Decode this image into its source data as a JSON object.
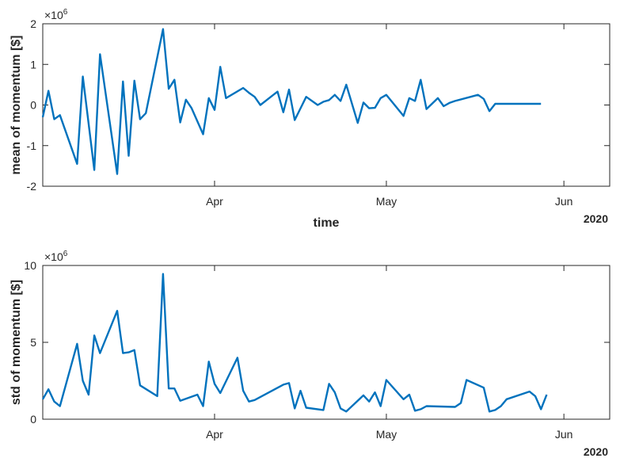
{
  "chart_data": [
    {
      "type": "line",
      "ylabel": "mean of momentum [$]",
      "xlabel": "time",
      "exponent_base": "×10",
      "exponent_power": "6",
      "year_label": "2020",
      "ylim": [
        -2,
        2
      ],
      "yticks": [
        -2,
        -1,
        0,
        1,
        2
      ],
      "ytick_labels": [
        "-2",
        "-1",
        "0",
        "1",
        "2"
      ],
      "xlim": [
        "2020-03-02",
        "2020-06-09"
      ],
      "xticks": [
        {
          "date": "2020-04-01",
          "label": "Apr"
        },
        {
          "date": "2020-05-01",
          "label": "May"
        },
        {
          "date": "2020-06-01",
          "label": "Jun"
        }
      ],
      "grid": false,
      "series": [
        {
          "color": "#0072BD",
          "x": [
            "2020-03-02",
            "2020-03-03",
            "2020-03-04",
            "2020-03-05",
            "2020-03-08",
            "2020-03-09",
            "2020-03-11",
            "2020-03-12",
            "2020-03-15",
            "2020-03-16",
            "2020-03-17",
            "2020-03-18",
            "2020-03-19",
            "2020-03-20",
            "2020-03-23",
            "2020-03-24",
            "2020-03-25",
            "2020-03-26",
            "2020-03-27",
            "2020-03-28",
            "2020-03-30",
            "2020-03-31",
            "2020-04-01",
            "2020-04-02",
            "2020-04-03",
            "2020-04-06",
            "2020-04-07",
            "2020-04-08",
            "2020-04-09",
            "2020-04-12",
            "2020-04-13",
            "2020-04-14",
            "2020-04-15",
            "2020-04-17",
            "2020-04-19",
            "2020-04-20",
            "2020-04-21",
            "2020-04-22",
            "2020-04-23",
            "2020-04-24",
            "2020-04-26",
            "2020-04-27",
            "2020-04-28",
            "2020-04-29",
            "2020-04-30",
            "2020-05-01",
            "2020-05-04",
            "2020-05-05",
            "2020-05-06",
            "2020-05-07",
            "2020-05-08",
            "2020-05-10",
            "2020-05-11",
            "2020-05-12",
            "2020-05-13",
            "2020-05-17",
            "2020-05-18",
            "2020-05-19",
            "2020-05-20",
            "2020-05-21",
            "2020-05-22",
            "2020-05-24",
            "2020-05-26",
            "2020-05-27",
            "2020-05-28"
          ],
          "y": [
            -0.3,
            0.35,
            -0.35,
            -0.25,
            -1.45,
            0.7,
            -1.6,
            1.25,
            -1.7,
            0.58,
            -1.25,
            0.6,
            -0.35,
            -0.2,
            1.87,
            0.4,
            0.62,
            -0.43,
            0.13,
            -0.08,
            -0.72,
            0.17,
            -0.12,
            0.94,
            0.17,
            0.42,
            0.3,
            0.2,
            0.0,
            0.33,
            -0.18,
            0.38,
            -0.37,
            0.2,
            0.0,
            0.08,
            0.12,
            0.25,
            0.1,
            0.5,
            -0.44,
            0.06,
            -0.08,
            -0.07,
            0.17,
            0.25,
            -0.27,
            0.17,
            0.1,
            0.62,
            -0.1,
            0.17,
            -0.03,
            0.05,
            0.1,
            0.25,
            0.15,
            -0.15,
            0.03,
            0.03,
            0.03,
            0.03,
            0.03,
            0.03,
            0.03
          ]
        }
      ]
    },
    {
      "type": "line",
      "ylabel": "std of momentum [$]",
      "xlabel": "",
      "exponent_base": "×10",
      "exponent_power": "6",
      "year_label": "2020",
      "ylim": [
        0,
        10
      ],
      "yticks": [
        0,
        5,
        10
      ],
      "ytick_labels": [
        "0",
        "5",
        "10"
      ],
      "xlim": [
        "2020-03-02",
        "2020-06-09"
      ],
      "xticks": [
        {
          "date": "2020-04-01",
          "label": "Apr"
        },
        {
          "date": "2020-05-01",
          "label": "May"
        },
        {
          "date": "2020-06-01",
          "label": "Jun"
        }
      ],
      "grid": false,
      "series": [
        {
          "color": "#0072BD",
          "x": [
            "2020-03-02",
            "2020-03-03",
            "2020-03-04",
            "2020-03-05",
            "2020-03-08",
            "2020-03-09",
            "2020-03-10",
            "2020-03-11",
            "2020-03-12",
            "2020-03-15",
            "2020-03-16",
            "2020-03-17",
            "2020-03-18",
            "2020-03-19",
            "2020-03-22",
            "2020-03-23",
            "2020-03-24",
            "2020-03-25",
            "2020-03-26",
            "2020-03-29",
            "2020-03-30",
            "2020-03-31",
            "2020-04-01",
            "2020-04-02",
            "2020-04-05",
            "2020-04-06",
            "2020-04-07",
            "2020-04-08",
            "2020-04-13",
            "2020-04-14",
            "2020-04-15",
            "2020-04-16",
            "2020-04-17",
            "2020-04-20",
            "2020-04-21",
            "2020-04-22",
            "2020-04-23",
            "2020-04-24",
            "2020-04-27",
            "2020-04-28",
            "2020-04-29",
            "2020-04-30",
            "2020-05-01",
            "2020-05-04",
            "2020-05-05",
            "2020-05-06",
            "2020-05-07",
            "2020-05-08",
            "2020-05-13",
            "2020-05-14",
            "2020-05-15",
            "2020-05-18",
            "2020-05-19",
            "2020-05-20",
            "2020-05-21",
            "2020-05-22",
            "2020-05-26",
            "2020-05-27",
            "2020-05-28",
            "2020-05-29"
          ],
          "y": [
            1.3,
            1.95,
            1.15,
            0.85,
            4.9,
            2.5,
            1.6,
            5.45,
            4.3,
            7.05,
            4.3,
            4.35,
            4.5,
            2.2,
            1.5,
            9.45,
            2.0,
            2.0,
            1.2,
            1.6,
            0.85,
            3.75,
            2.3,
            1.7,
            4.0,
            1.85,
            1.15,
            1.25,
            2.25,
            2.35,
            0.7,
            1.85,
            0.75,
            0.6,
            2.3,
            1.75,
            0.7,
            0.5,
            1.55,
            1.15,
            1.75,
            0.85,
            2.55,
            1.3,
            1.6,
            0.55,
            0.65,
            0.85,
            0.8,
            1.05,
            2.55,
            2.05,
            0.5,
            0.6,
            0.85,
            1.3,
            1.8,
            1.5,
            0.65,
            1.6
          ]
        }
      ]
    }
  ]
}
